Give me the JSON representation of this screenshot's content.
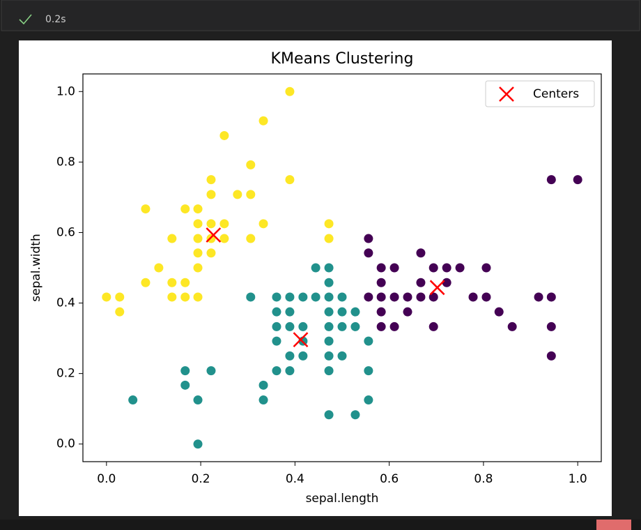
{
  "status": {
    "time": "0.2s"
  },
  "chart_data": {
    "type": "scatter",
    "title": "KMeans Clustering",
    "x_label": "sepal.length",
    "y_label": "sepal.width",
    "xlim": [
      -0.05,
      1.05
    ],
    "ylim": [
      -0.05,
      1.05
    ],
    "xticks": [
      {
        "value": 0,
        "label": "0.0"
      },
      0.2,
      0.4,
      0.6,
      0.8,
      {
        "value": 1,
        "label": "1.0"
      }
    ],
    "yticks": [
      {
        "value": 0,
        "label": "0.0"
      },
      0.2,
      0.4,
      0.6,
      0.8,
      {
        "value": 1,
        "label": "1.0"
      }
    ],
    "grid": false,
    "legend_loc": "upper right",
    "series": [
      {
        "color": "#fde725",
        "x": [
          0.0,
          0.028,
          0.028,
          0.083,
          0.083,
          0.111,
          0.139,
          0.139,
          0.139,
          0.167,
          0.167,
          0.167,
          0.194,
          0.194,
          0.194,
          0.194,
          0.194,
          0.194,
          0.222,
          0.222,
          0.222,
          0.222,
          0.222,
          0.25,
          0.25,
          0.25,
          0.278,
          0.306,
          0.306,
          0.306,
          0.333,
          0.333,
          0.389,
          0.389,
          0.472,
          0.472
        ],
        "values": [
          0.417,
          0.417,
          0.375,
          0.667,
          0.458,
          0.5,
          0.583,
          0.458,
          0.417,
          0.667,
          0.458,
          0.417,
          0.667,
          0.625,
          0.583,
          0.542,
          0.5,
          0.417,
          0.75,
          0.708,
          0.625,
          0.583,
          0.542,
          0.875,
          0.625,
          0.583,
          0.708,
          0.792,
          0.708,
          0.583,
          0.917,
          0.625,
          1.0,
          0.75,
          0.625,
          0.583
        ]
      },
      {
        "color": "#21918c",
        "x": [
          0.056,
          0.167,
          0.167,
          0.194,
          0.194,
          0.222,
          0.306,
          0.333,
          0.333,
          0.361,
          0.361,
          0.361,
          0.361,
          0.361,
          0.389,
          0.389,
          0.389,
          0.389,
          0.389,
          0.417,
          0.417,
          0.417,
          0.417,
          0.444,
          0.444,
          0.472,
          0.472,
          0.472,
          0.472,
          0.472,
          0.472,
          0.472,
          0.472,
          0.472,
          0.5,
          0.5,
          0.5,
          0.5,
          0.528,
          0.528,
          0.528,
          0.556,
          0.556,
          0.556
        ],
        "values": [
          0.125,
          0.208,
          0.167,
          0.125,
          0.0,
          0.208,
          0.417,
          0.167,
          0.125,
          0.417,
          0.375,
          0.333,
          0.292,
          0.208,
          0.417,
          0.375,
          0.333,
          0.25,
          0.208,
          0.417,
          0.333,
          0.292,
          0.25,
          0.5,
          0.417,
          0.5,
          0.458,
          0.417,
          0.375,
          0.333,
          0.292,
          0.25,
          0.208,
          0.083,
          0.417,
          0.375,
          0.333,
          0.25,
          0.375,
          0.333,
          0.083,
          0.292,
          0.208,
          0.125
        ]
      },
      {
        "color": "#440154",
        "x": [
          0.556,
          0.556,
          0.556,
          0.583,
          0.583,
          0.583,
          0.583,
          0.583,
          0.611,
          0.611,
          0.611,
          0.639,
          0.639,
          0.667,
          0.667,
          0.667,
          0.694,
          0.694,
          0.694,
          0.722,
          0.722,
          0.75,
          0.778,
          0.806,
          0.806,
          0.833,
          0.861,
          0.917,
          0.944,
          0.944,
          0.944,
          0.944,
          1.0
        ],
        "values": [
          0.583,
          0.542,
          0.417,
          0.5,
          0.458,
          0.417,
          0.375,
          0.333,
          0.5,
          0.417,
          0.333,
          0.417,
          0.375,
          0.542,
          0.458,
          0.417,
          0.5,
          0.417,
          0.333,
          0.5,
          0.458,
          0.5,
          0.417,
          0.5,
          0.417,
          0.375,
          0.333,
          0.417,
          0.75,
          0.417,
          0.333,
          0.25,
          0.75
        ]
      },
      {
        "name": "Centers",
        "color": "#ff0000",
        "marker": "x",
        "x": [
          0.227,
          0.412,
          0.702
        ],
        "values": [
          0.593,
          0.296,
          0.444
        ]
      }
    ]
  }
}
